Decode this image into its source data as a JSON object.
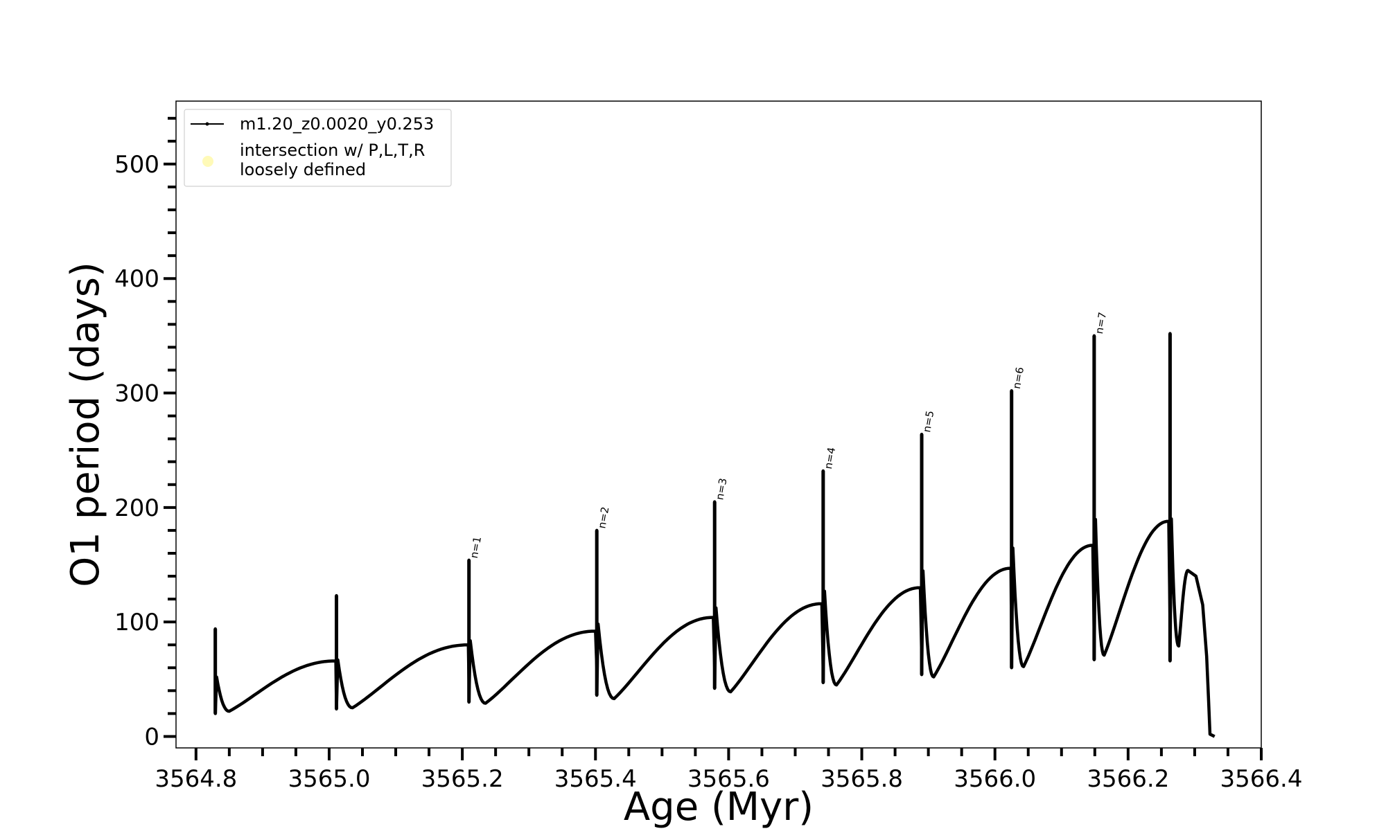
{
  "chart_data": {
    "type": "line",
    "title": "",
    "xlabel": "Age (Myr)",
    "ylabel": "O1 period (days)",
    "xlim": [
      3564.77,
      3566.4
    ],
    "ylim": [
      -10,
      555
    ],
    "x_ticks": [
      "3564.8",
      "3565.0",
      "3565.2",
      "3565.4",
      "3565.6",
      "3565.8",
      "3566.0",
      "3566.2",
      "3566.4"
    ],
    "y_ticks": [
      "0",
      "100",
      "200",
      "300",
      "400",
      "500"
    ],
    "legend": {
      "placement": "top-left",
      "entries": [
        {
          "label": "m1.20_z0.0020_y0.253",
          "marker": "line-with-dot",
          "color": "#000000"
        },
        {
          "label_lines": [
            "intersection w/ P,L,T,R",
            "loosely defined"
          ],
          "marker": "circle",
          "color": "#fff9b0"
        }
      ]
    },
    "series": [
      {
        "name": "m1.20_z0.0020_y0.253",
        "color": "#000000",
        "cycles": [
          {
            "start": 3564.829,
            "base": 50,
            "spike": 94,
            "low": 20,
            "dip_x": 3564.85,
            "dip_y": 22,
            "end_x": 3565.01,
            "end_y": 66
          },
          {
            "start": 3565.011,
            "base": 26,
            "spike": 123,
            "low": 24,
            "dip_x": 3565.035,
            "dip_y": 25,
            "end_x": 3565.209,
            "end_y": 80
          },
          {
            "start": 3565.21,
            "base": 48,
            "spike": 154,
            "low": 30,
            "dip_x": 3565.235,
            "dip_y": 29,
            "end_x": 3565.4,
            "end_y": 92
          },
          {
            "start": 3565.402,
            "base": 60,
            "spike": 180,
            "low": 36,
            "dip_x": 3565.428,
            "dip_y": 33,
            "end_x": 3565.577,
            "end_y": 104
          },
          {
            "start": 3565.579,
            "base": 60,
            "spike": 205,
            "low": 42,
            "dip_x": 3565.603,
            "dip_y": 39,
            "end_x": 3565.74,
            "end_y": 116
          },
          {
            "start": 3565.742,
            "base": 60,
            "spike": 232,
            "low": 47,
            "dip_x": 3565.762,
            "dip_y": 45,
            "end_x": 3565.888,
            "end_y": 130
          },
          {
            "start": 3565.89,
            "base": 70,
            "spike": 264,
            "low": 54,
            "dip_x": 3565.908,
            "dip_y": 52,
            "end_x": 3566.024,
            "end_y": 147
          },
          {
            "start": 3566.025,
            "base": 80,
            "spike": 302,
            "low": 60,
            "dip_x": 3566.043,
            "dip_y": 61,
            "end_x": 3566.147,
            "end_y": 167
          },
          {
            "start": 3566.149,
            "base": 90,
            "spike": 350,
            "low": 67,
            "dip_x": 3566.164,
            "dip_y": 71,
            "end_x": 3566.261,
            "end_y": 188
          },
          {
            "start": 3566.263,
            "base": 100,
            "spike": 352,
            "low": 66,
            "dip_x": 3566.276,
            "dip_y": 79,
            "end_x": 3566.29,
            "end_y": 145
          }
        ],
        "tail": [
          [
            3566.29,
            145
          ],
          [
            3566.302,
            140
          ],
          [
            3566.312,
            115
          ],
          [
            3566.318,
            70
          ],
          [
            3566.321,
            30
          ],
          [
            3566.323,
            2
          ],
          [
            3566.33,
            0
          ]
        ]
      }
    ],
    "annotations": [
      {
        "text": "n=1",
        "x": 3565.212,
        "y": 154
      },
      {
        "text": "n=2",
        "x": 3565.404,
        "y": 180
      },
      {
        "text": "n=3",
        "x": 3565.581,
        "y": 205
      },
      {
        "text": "n=4",
        "x": 3565.744,
        "y": 232
      },
      {
        "text": "n=5",
        "x": 3565.892,
        "y": 264
      },
      {
        "text": "n=6",
        "x": 3566.027,
        "y": 302
      },
      {
        "text": "n=7",
        "x": 3566.151,
        "y": 350
      }
    ]
  }
}
